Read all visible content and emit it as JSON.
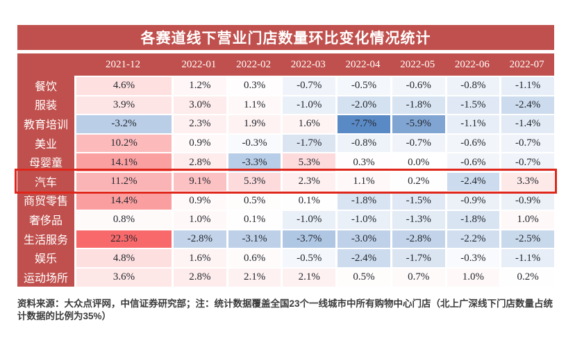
{
  "title": "各赛道线下营业门店数量环比变化情况统计",
  "footnote": "资料来源：大众点评网，中信证券研究部；注：统计数据覆盖全国23个一线城市中所有购物中心门店（北上广深线下门店数量占统计数据的比例为35%）",
  "colors": {
    "header_red": "#C0504D",
    "highlight_box": "#E0261A",
    "scale_max_red": "#F8696B",
    "scale_mid_white": "#FFFFFF",
    "scale_min_blue": "#5A8AC6",
    "cell_text": "#23272E",
    "header_text": "#FFFFFF"
  },
  "chart_data": {
    "type": "heatmap",
    "title": "各赛道线下营业门店数量环比变化情况统计",
    "unit": "%",
    "value_format": "one_decimal_percent",
    "categories": [
      "2021-12",
      "2022-01",
      "2022-02",
      "2022-03",
      "2022-04",
      "2022-05",
      "2022-06",
      "2022-07"
    ],
    "rows": [
      {
        "label": "餐饮",
        "values": [
          4.6,
          1.2,
          0.3,
          -0.7,
          -0.5,
          -0.6,
          -0.8,
          -1.1
        ],
        "highlighted": false
      },
      {
        "label": "服装",
        "values": [
          3.9,
          3.0,
          1.1,
          -1.0,
          -2.0,
          -1.8,
          -1.5,
          -2.4
        ],
        "highlighted": false
      },
      {
        "label": "教育培训",
        "values": [
          -3.2,
          2.3,
          1.9,
          1.6,
          -7.7,
          -5.9,
          -1.1,
          -1.4
        ],
        "highlighted": false
      },
      {
        "label": "美业",
        "values": [
          10.2,
          0.9,
          -0.3,
          -1.7,
          -0.8,
          -0.7,
          -0.6,
          -0.7
        ],
        "highlighted": false
      },
      {
        "label": "母婴童",
        "values": [
          14.1,
          2.8,
          -3.3,
          5.3,
          0.3,
          0.0,
          -0.6,
          -0.7
        ],
        "highlighted": false
      },
      {
        "label": "汽车",
        "values": [
          11.2,
          9.1,
          5.3,
          2.3,
          1.1,
          0.2,
          -2.4,
          3.3
        ],
        "highlighted": true
      },
      {
        "label": "商贸零售",
        "values": [
          14.4,
          0.9,
          0.5,
          0.1,
          -1.8,
          -1.5,
          -0.9,
          -0.9
        ],
        "highlighted": false
      },
      {
        "label": "奢侈品",
        "values": [
          0.8,
          1.0,
          0.1,
          -1.0,
          -1.0,
          -1.3,
          -1.8,
          1.0
        ],
        "highlighted": false
      },
      {
        "label": "生活服务",
        "values": [
          22.3,
          -2.8,
          -3.1,
          -3.7,
          -3.0,
          -2.8,
          -2.2,
          -2.5
        ],
        "highlighted": false
      },
      {
        "label": "娱乐",
        "values": [
          4.8,
          1.6,
          0.6,
          -0.5,
          -2.4,
          -1.7,
          -0.3,
          -1.1
        ],
        "highlighted": false
      },
      {
        "label": "运动场所",
        "values": [
          3.6,
          2.8,
          2.1,
          2.1,
          0.5,
          0.7,
          1.0,
          0.2
        ],
        "highlighted": false
      }
    ],
    "color_scale": {
      "min_value": -7.7,
      "mid_value": 0,
      "max_value": 22.3,
      "min_color": "#5A8AC6",
      "mid_color": "#FFFFFF",
      "max_color": "#F8696B"
    },
    "legend": "none",
    "highlighted_row_label": "汽车"
  }
}
